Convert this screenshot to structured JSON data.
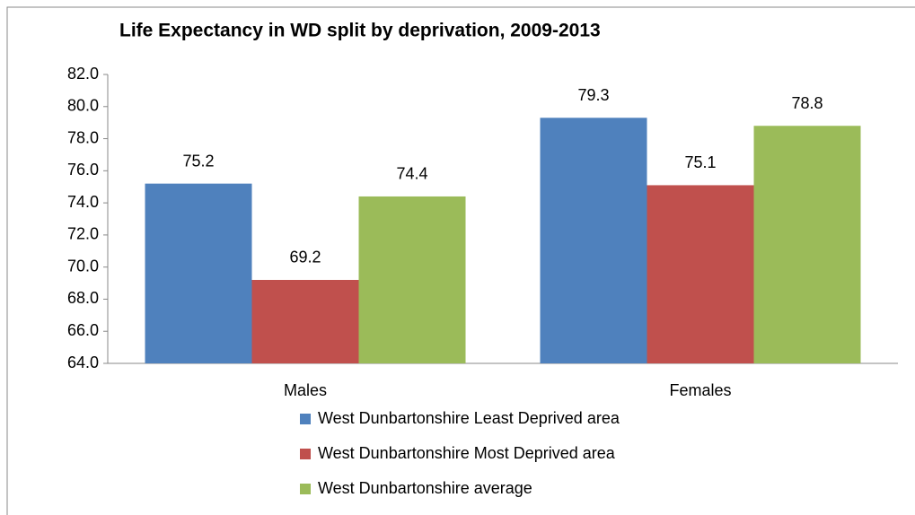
{
  "chart_data": {
    "type": "bar",
    "title": "Life Expectancy in WD split by deprivation, 2009-2013",
    "categories": [
      "Males",
      "Females"
    ],
    "series": [
      {
        "name": "West Dunbartonshire Least Deprived area",
        "color": "#4f81bd",
        "values": [
          75.2,
          79.3
        ]
      },
      {
        "name": "West Dunbartonshire Most Deprived area",
        "color": "#c0504d",
        "values": [
          69.2,
          75.1
        ]
      },
      {
        "name": "West Dunbartonshire average",
        "color": "#9bbb59",
        "values": [
          74.4,
          78.8
        ]
      }
    ],
    "ylim": [
      64,
      82
    ],
    "yticks": [
      {
        "value": 64,
        "label": "64.0"
      },
      {
        "value": 66,
        "label": "66.0"
      },
      {
        "value": 68,
        "label": "68.0"
      },
      {
        "value": 70,
        "label": "70.0"
      },
      {
        "value": 72,
        "label": "72.0"
      },
      {
        "value": 74,
        "label": "74.0"
      },
      {
        "value": 76,
        "label": "76.0"
      },
      {
        "value": 78,
        "label": "78.0"
      },
      {
        "value": 80,
        "label": "80.0"
      },
      {
        "value": 82,
        "label": "82.0"
      }
    ],
    "grid": false,
    "legend": "bottom"
  }
}
